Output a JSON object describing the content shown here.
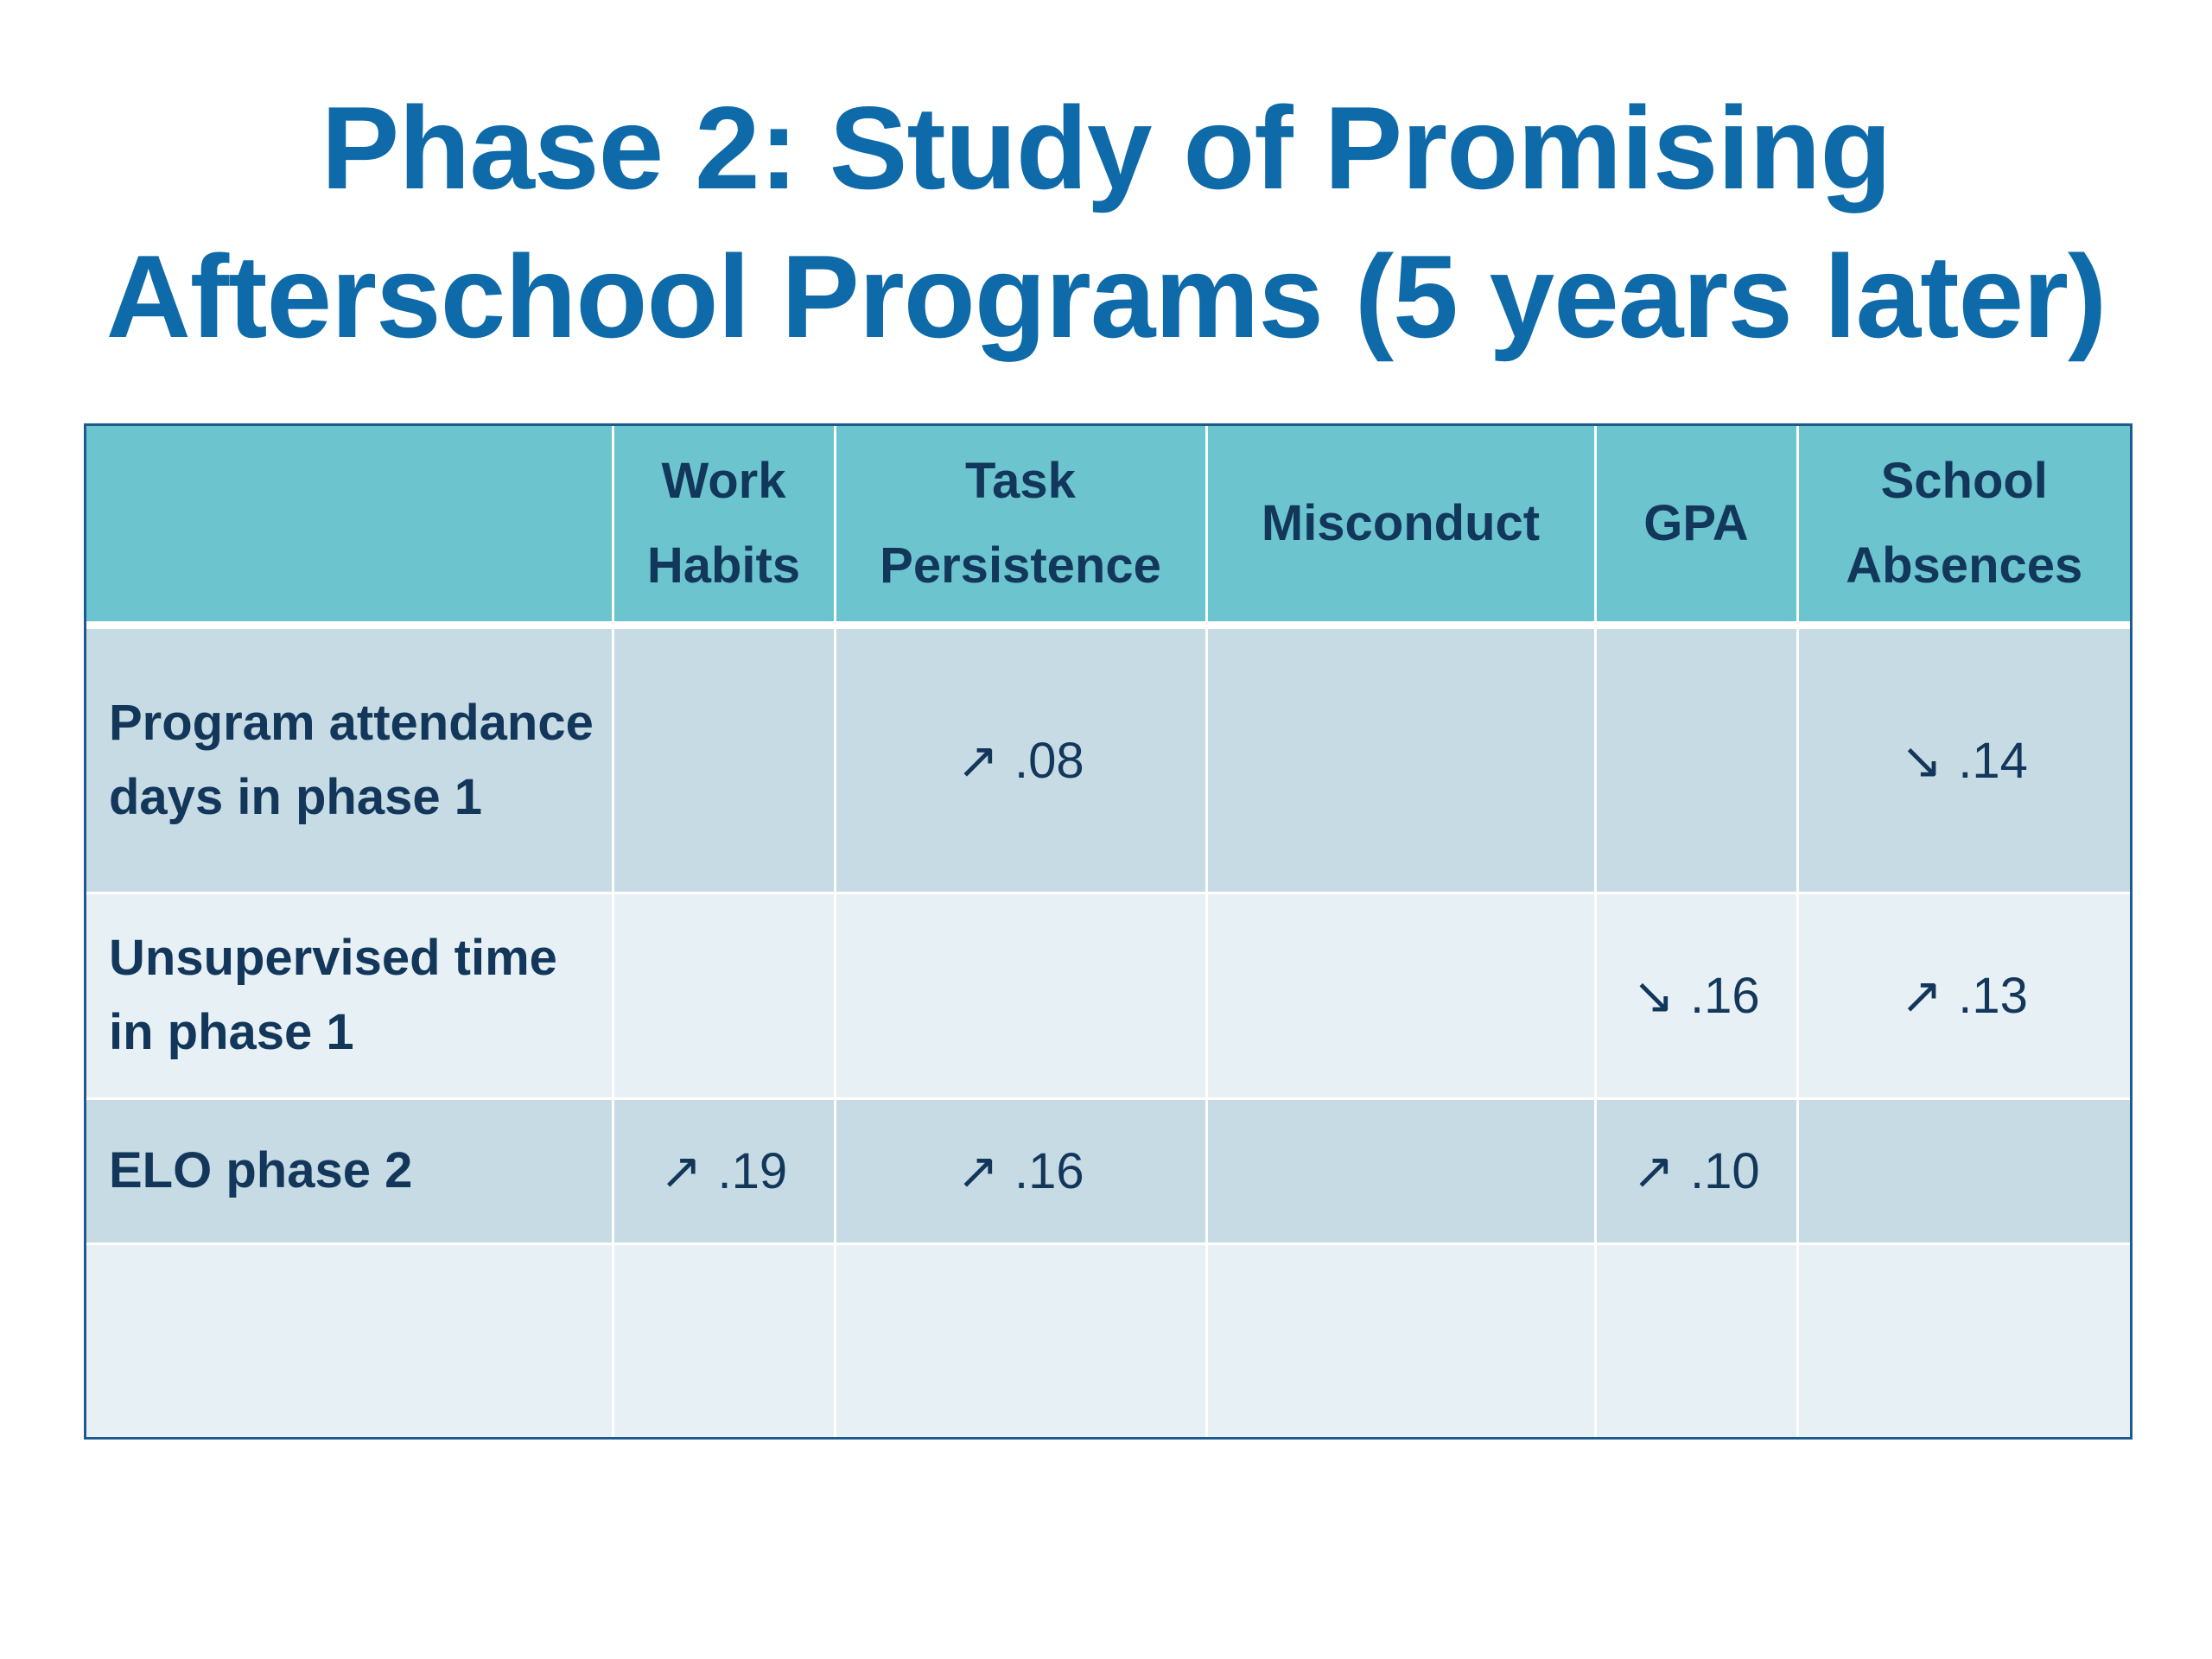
{
  "title": {
    "line1": "Phase 2:  Study of Promising",
    "line2": "Afterschool Programs (5 years later)"
  },
  "table": {
    "headers": [
      "",
      "Work Habits",
      "Task Persistence",
      "Misconduct",
      "GPA",
      "School Absences"
    ],
    "rows": [
      {
        "label": "Program attendance days in phase 1",
        "cells": [
          {
            "arrow": "",
            "value": ""
          },
          {
            "arrow": "↗",
            "value": ".08"
          },
          {
            "arrow": "",
            "value": ""
          },
          {
            "arrow": "",
            "value": ""
          },
          {
            "arrow": "↘",
            "value": ".14"
          }
        ]
      },
      {
        "label": "Unsupervised time in phase 1",
        "cells": [
          {
            "arrow": "",
            "value": ""
          },
          {
            "arrow": "",
            "value": ""
          },
          {
            "arrow": "",
            "value": ""
          },
          {
            "arrow": "↘",
            "value": ".16"
          },
          {
            "arrow": "↗",
            "value": ".13"
          }
        ]
      },
      {
        "label": "ELO phase 2",
        "cells": [
          {
            "arrow": "↗",
            "value": ".19"
          },
          {
            "arrow": "↗",
            "value": ".16"
          },
          {
            "arrow": "",
            "value": ""
          },
          {
            "arrow": "↗",
            "value": ".10"
          },
          {
            "arrow": "",
            "value": ""
          }
        ]
      },
      {
        "label": "",
        "cells": [
          {
            "arrow": "",
            "value": ""
          },
          {
            "arrow": "",
            "value": ""
          },
          {
            "arrow": "",
            "value": ""
          },
          {
            "arrow": "",
            "value": ""
          },
          {
            "arrow": "",
            "value": ""
          }
        ]
      }
    ]
  },
  "colors": {
    "title": "#0e6aa8",
    "header_bg": "#6cc4cf",
    "row_dark": "#c6dbe3",
    "row_light": "#e7f0f4",
    "text": "#12375a",
    "border": "#1d5a8e"
  }
}
